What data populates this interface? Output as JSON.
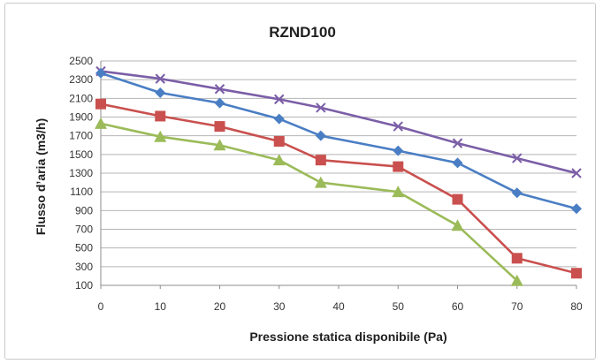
{
  "chart_data": {
    "type": "line",
    "title": "RZND100",
    "xlabel": "Pressione statica disponibile (Pa)",
    "ylabel": "Flusso d’aria (m3/h)",
    "xlim": [
      0,
      80
    ],
    "ylim": [
      100,
      2500
    ],
    "xticks": [
      0,
      10,
      20,
      30,
      40,
      50,
      60,
      70,
      80
    ],
    "yticks": [
      100,
      300,
      500,
      700,
      900,
      1100,
      1300,
      1500,
      1700,
      1900,
      2100,
      2300,
      2500
    ],
    "grid": "horizontal",
    "legend": "none",
    "series": [
      {
        "color": "#7b5ea7",
        "marker": "x",
        "points": [
          [
            0,
            2390
          ],
          [
            10,
            2310
          ],
          [
            20,
            2200
          ],
          [
            30,
            2090
          ],
          [
            37,
            2000
          ],
          [
            50,
            1800
          ],
          [
            60,
            1620
          ],
          [
            70,
            1460
          ],
          [
            80,
            1300
          ]
        ]
      },
      {
        "color": "#4a7ec4",
        "marker": "diamond",
        "points": [
          [
            0,
            2370
          ],
          [
            10,
            2160
          ],
          [
            20,
            2050
          ],
          [
            30,
            1880
          ],
          [
            37,
            1700
          ],
          [
            50,
            1540
          ],
          [
            60,
            1410
          ],
          [
            70,
            1090
          ],
          [
            80,
            920
          ]
        ]
      },
      {
        "color": "#c9504e",
        "marker": "square",
        "points": [
          [
            0,
            2040
          ],
          [
            10,
            1910
          ],
          [
            20,
            1800
          ],
          [
            30,
            1640
          ],
          [
            37,
            1440
          ],
          [
            50,
            1370
          ],
          [
            60,
            1020
          ],
          [
            70,
            390
          ],
          [
            80,
            230
          ]
        ]
      },
      {
        "color": "#9bbb59",
        "marker": "triangle",
        "points": [
          [
            0,
            1830
          ],
          [
            10,
            1690
          ],
          [
            20,
            1600
          ],
          [
            30,
            1440
          ],
          [
            37,
            1200
          ],
          [
            50,
            1100
          ],
          [
            60,
            740
          ],
          [
            70,
            150
          ]
        ]
      }
    ]
  }
}
